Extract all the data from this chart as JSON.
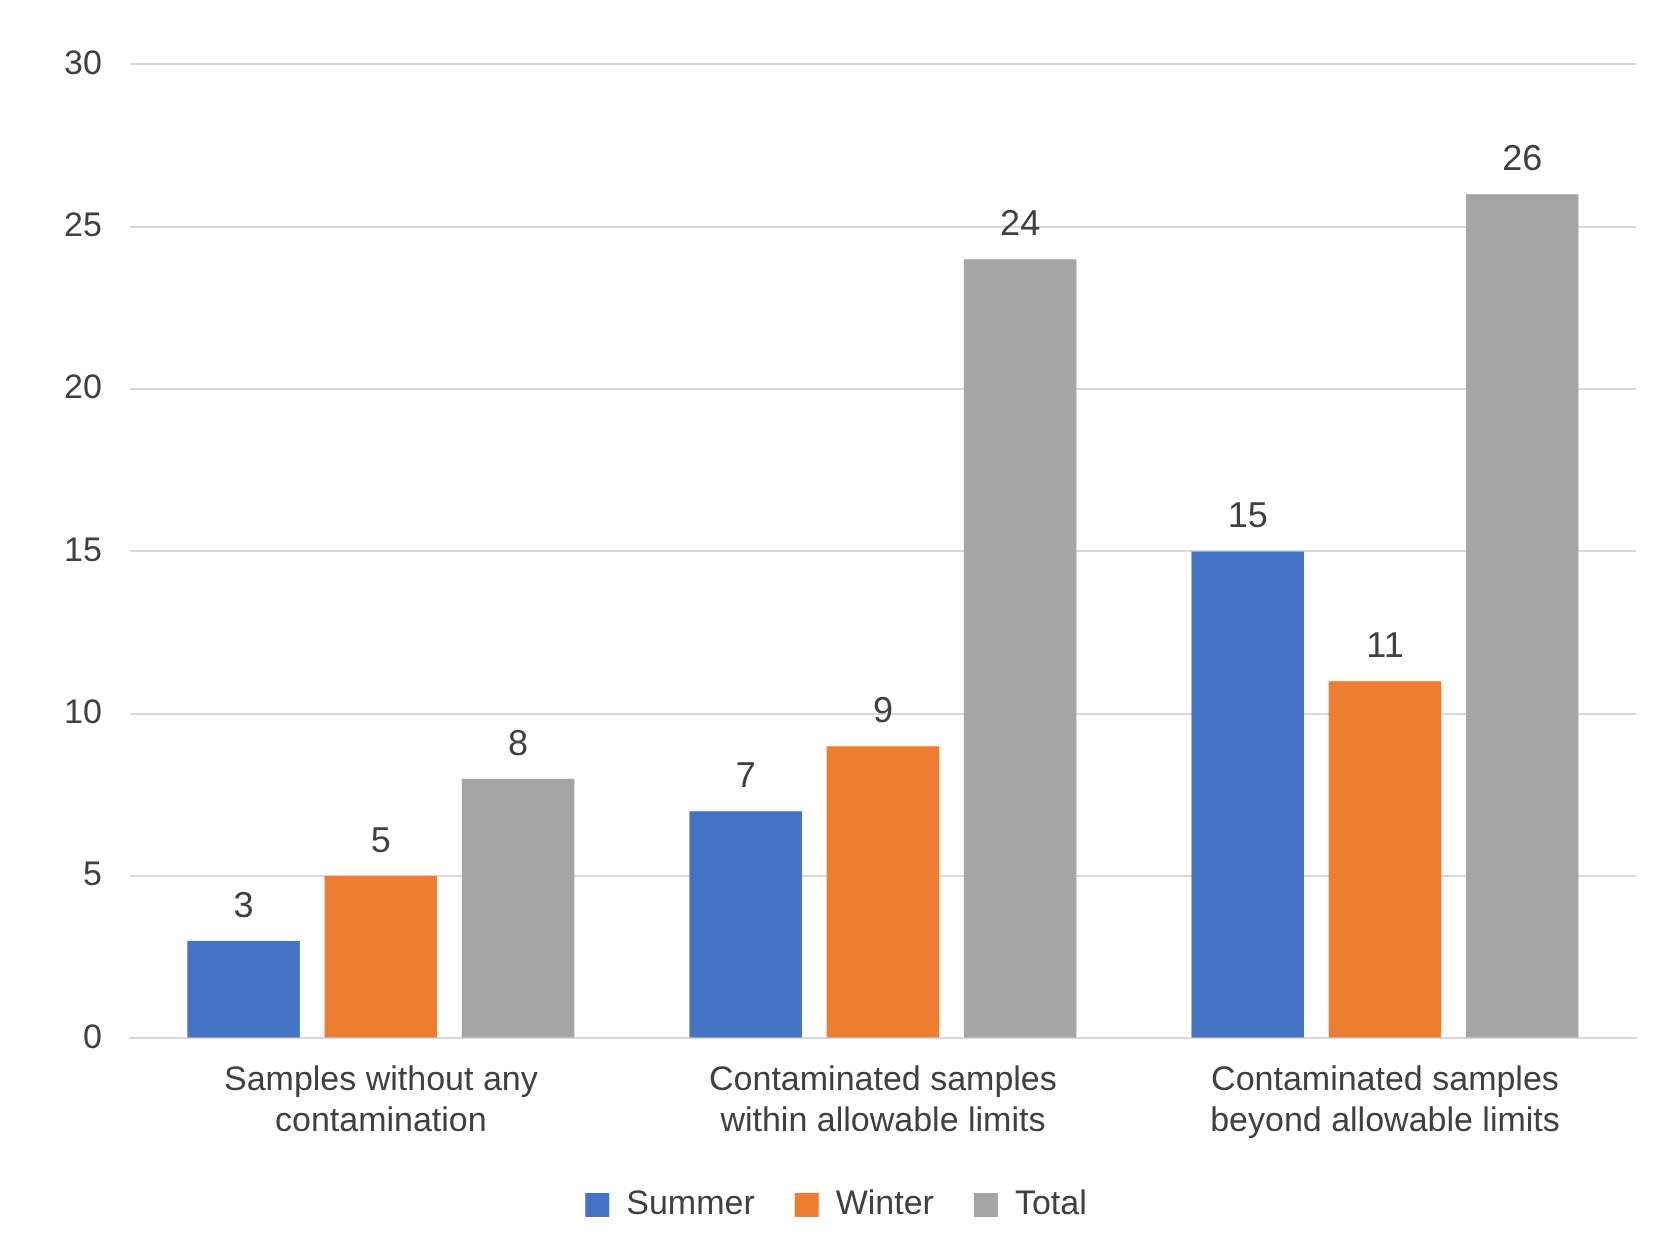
{
  "chart_data": {
    "type": "bar",
    "categories": [
      "Samples without any contamination",
      "Contaminated samples within allowable limits",
      "Contaminated samples beyond allowable limits"
    ],
    "series": [
      {
        "name": "Summer",
        "color": "#4472c4",
        "values": [
          3,
          7,
          15
        ]
      },
      {
        "name": "Winter",
        "color": "#ed7d31",
        "values": [
          5,
          9,
          11
        ]
      },
      {
        "name": "Total",
        "color": "#a5a5a5",
        "values": [
          8,
          24,
          26
        ]
      }
    ],
    "ylim": [
      0,
      30
    ],
    "yticks": [
      0,
      5,
      10,
      15,
      20,
      25,
      30
    ],
    "grid": "y",
    "legend": "bottom",
    "data_labels": true
  }
}
